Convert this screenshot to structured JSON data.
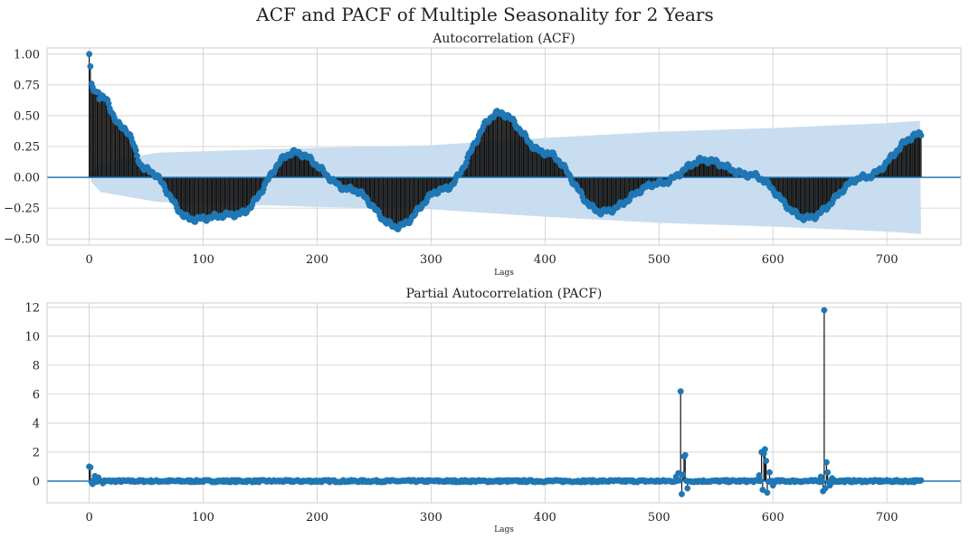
{
  "suptitle": "ACF and PACF of Multiple Seasonality for 2 Years",
  "colors": {
    "marker": "#1f77b4",
    "stem": "#111111",
    "band": "#c6dbef",
    "grid": "#cccccc",
    "zero": "#1f77b4"
  },
  "chart_data": [
    {
      "type": "stem",
      "title": "Autocorrelation (ACF)",
      "xlabel": "Lags",
      "ylabel": "",
      "xlim": [
        -37,
        765
      ],
      "ylim": [
        -0.55,
        1.05
      ],
      "xticks": [
        0,
        100,
        200,
        300,
        400,
        500,
        600,
        700
      ],
      "yticks": [
        -0.5,
        -0.25,
        0.0,
        0.25,
        0.5,
        0.75,
        1.0
      ],
      "ytick_labels": [
        "−0.50",
        "−0.25",
        "0.00",
        "0.25",
        "0.50",
        "0.75",
        "1.00"
      ],
      "lags": [
        0,
        730
      ],
      "grid": true,
      "confidence_band": true,
      "shape": {
        "start": [
          [
            0,
            1.0
          ],
          [
            1,
            0.9
          ],
          [
            2,
            0.76
          ],
          [
            4,
            0.7
          ],
          [
            8,
            0.69
          ]
        ],
        "envelope": [
          [
            10,
            0.66
          ],
          [
            30,
            0.4
          ],
          [
            50,
            0.06
          ],
          [
            90,
            -0.34
          ],
          [
            130,
            -0.3
          ],
          [
            180,
            0.2
          ],
          [
            230,
            -0.1
          ],
          [
            270,
            -0.4
          ],
          [
            310,
            -0.1
          ],
          [
            360,
            0.52
          ],
          [
            400,
            0.2
          ],
          [
            450,
            -0.28
          ],
          [
            500,
            -0.05
          ],
          [
            540,
            0.14
          ],
          [
            580,
            0.02
          ],
          [
            630,
            -0.33
          ],
          [
            680,
            0.0
          ],
          [
            730,
            0.35
          ]
        ],
        "ripple": 0.025,
        "band": [
          [
            0,
            0.02
          ],
          [
            10,
            0.12
          ],
          [
            60,
            0.2
          ],
          [
            200,
            0.24
          ],
          [
            300,
            0.26
          ],
          [
            400,
            0.32
          ],
          [
            500,
            0.37
          ],
          [
            600,
            0.4
          ],
          [
            700,
            0.44
          ],
          [
            730,
            0.46
          ]
        ]
      }
    },
    {
      "type": "stem",
      "title": "Partial Autocorrelation (PACF)",
      "xlabel": "Lags",
      "ylabel": "",
      "xlim": [
        -37,
        765
      ],
      "ylim": [
        -1.5,
        12.3
      ],
      "xticks": [
        0,
        100,
        200,
        300,
        400,
        500,
        600,
        700
      ],
      "yticks": [
        0,
        2,
        4,
        6,
        8,
        10,
        12
      ],
      "ytick_labels": [
        "0",
        "2",
        "4",
        "6",
        "8",
        "10",
        "12"
      ],
      "lags": [
        0,
        730
      ],
      "grid": true,
      "confidence_band": false,
      "shape": {
        "noise": 0.07,
        "spikes": [
          [
            0,
            1.0
          ],
          [
            1,
            0.95
          ],
          [
            3,
            -0.2
          ],
          [
            5,
            0.35
          ],
          [
            8,
            0.25
          ],
          [
            12,
            -0.15
          ],
          [
            515,
            0.3
          ],
          [
            517,
            0.55
          ],
          [
            519,
            6.2
          ],
          [
            520,
            -0.9
          ],
          [
            521,
            0.45
          ],
          [
            522,
            1.7
          ],
          [
            523,
            1.8
          ],
          [
            525,
            -0.5
          ],
          [
            588,
            0.4
          ],
          [
            590,
            2.0
          ],
          [
            591,
            -0.6
          ],
          [
            592,
            1.9
          ],
          [
            593,
            2.2
          ],
          [
            594,
            1.4
          ],
          [
            595,
            -0.8
          ],
          [
            597,
            0.6
          ],
          [
            600,
            -0.3
          ],
          [
            642,
            0.3
          ],
          [
            644,
            -0.7
          ],
          [
            645,
            11.8
          ],
          [
            646,
            -0.5
          ],
          [
            647,
            1.3
          ],
          [
            648,
            0.6
          ],
          [
            650,
            -0.3
          ],
          [
            652,
            0.2
          ]
        ]
      }
    }
  ]
}
